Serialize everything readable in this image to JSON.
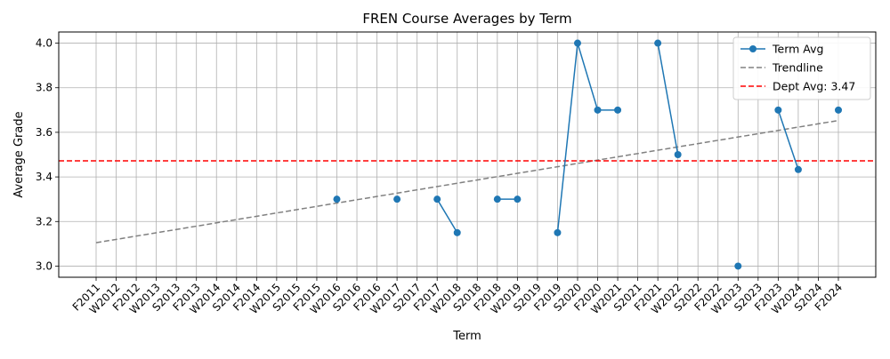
{
  "chart_data": {
    "type": "line",
    "title": "FREN Course Averages by Term",
    "xlabel": "Term",
    "ylabel": "Average Grade",
    "categories": [
      "F2011",
      "W2012",
      "F2012",
      "W2013",
      "S2013",
      "F2013",
      "W2014",
      "S2014",
      "F2014",
      "W2015",
      "S2015",
      "F2015",
      "W2016",
      "S2016",
      "F2016",
      "W2017",
      "S2017",
      "F2017",
      "W2018",
      "S2018",
      "F2018",
      "W2019",
      "S2019",
      "F2019",
      "S2020",
      "F2020",
      "W2021",
      "S2021",
      "F2021",
      "W2022",
      "S2022",
      "F2022",
      "W2023",
      "S2023",
      "F2023",
      "W2024",
      "S2024",
      "F2024"
    ],
    "ylim": [
      2.95,
      4.05
    ],
    "yticks": [
      "3.0",
      "3.2",
      "3.4",
      "3.6",
      "3.8",
      "4.0"
    ],
    "grid": true,
    "legend_position": "upper-right",
    "series": [
      {
        "name": "Term Avg",
        "color": "#1f77b4",
        "values": [
          null,
          null,
          null,
          null,
          null,
          null,
          null,
          null,
          null,
          null,
          null,
          null,
          3.3,
          null,
          null,
          3.3,
          null,
          3.3,
          3.15,
          null,
          3.3,
          3.3,
          null,
          3.15,
          4.0,
          3.7,
          3.7,
          null,
          4.0,
          3.5,
          null,
          null,
          3.0,
          null,
          3.7,
          3.433,
          null,
          3.7
        ]
      }
    ],
    "trendline": {
      "name": "Trendline",
      "color": "#808080",
      "start": 3.105,
      "end": 3.653
    },
    "reference_line": {
      "name": "Dept Avg: 3.47",
      "value": 3.472,
      "color": "#ff0000"
    }
  }
}
